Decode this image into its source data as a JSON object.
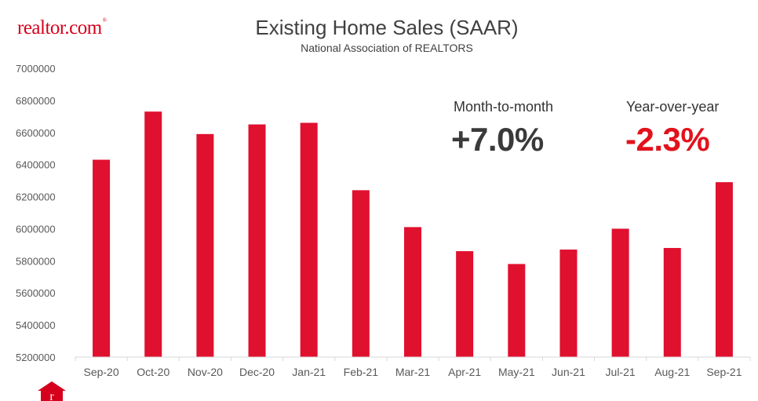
{
  "brand": {
    "logo_text": "realtor.com",
    "logo_mark": "®",
    "accent": "#d6001c"
  },
  "chart_data": {
    "type": "bar",
    "title": "Existing Home Sales (SAAR)",
    "subtitle": "National Association of REALTORS",
    "xlabel": "",
    "ylabel": "",
    "ylim": [
      5200000,
      7000000
    ],
    "yticks": [
      5200000,
      5400000,
      5600000,
      5800000,
      6000000,
      6200000,
      6400000,
      6600000,
      6800000,
      7000000
    ],
    "grid": false,
    "categories": [
      "Sep-20",
      "Oct-20",
      "Nov-20",
      "Dec-20",
      "Jan-21",
      "Feb-21",
      "Mar-21",
      "Apr-21",
      "May-21",
      "Jun-21",
      "Jul-21",
      "Aug-21",
      "Sep-21"
    ],
    "values": [
      6430000,
      6730000,
      6590000,
      6650000,
      6660000,
      6240000,
      6010000,
      5860000,
      5780000,
      5870000,
      6000000,
      5880000,
      6290000
    ],
    "bar_color": "#e0102f"
  },
  "stats": {
    "mom_label": "Month-to-month",
    "mom_value": "+7.0%",
    "mom_color": "#3a3a3a",
    "yoy_label": "Year-over-year",
    "yoy_value": "-2.3%",
    "yoy_color": "#e2121c"
  }
}
